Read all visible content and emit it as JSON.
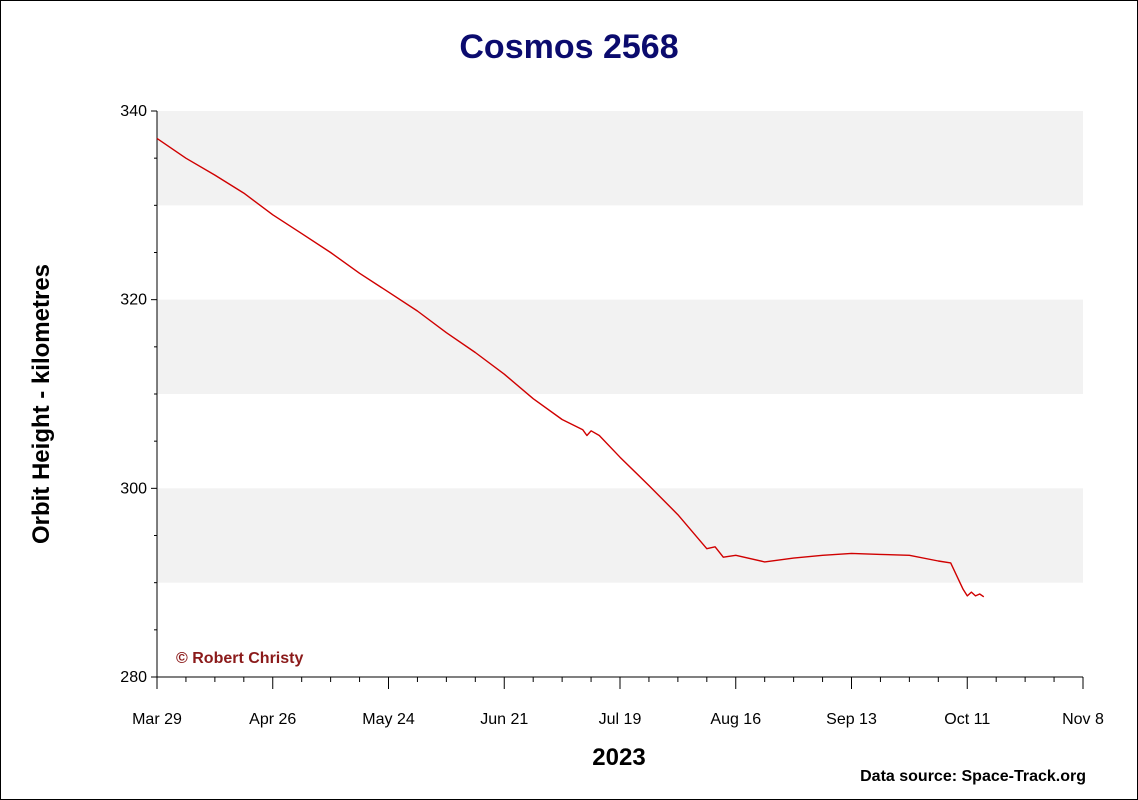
{
  "chart_data": {
    "type": "line",
    "title": "Cosmos 2568",
    "xlabel": "2023",
    "ylabel": "Orbit Height - kilometres",
    "ylim": [
      280,
      340
    ],
    "xlim": [
      "Mar 29",
      "Nov 8"
    ],
    "y_ticks": [
      "280",
      "300",
      "320",
      "340"
    ],
    "x_ticks": [
      "Mar 29",
      "Apr 26",
      "May 24",
      "Jun 21",
      "Jul 19",
      "Aug 16",
      "Sep 13",
      "Oct 11",
      "Nov 8"
    ],
    "grid": "alternating horizontal bands every 10 km",
    "series": [
      {
        "color": "#d00000",
        "points": [
          [
            "Mar 29",
            337.1
          ],
          [
            "Apr 5",
            335.0
          ],
          [
            "Apr 12",
            333.2
          ],
          [
            "Apr 19",
            331.3
          ],
          [
            "Apr 26",
            329.0
          ],
          [
            "May 3",
            327.0
          ],
          [
            "May 10",
            325.0
          ],
          [
            "May 17",
            322.8
          ],
          [
            "May 24",
            320.8
          ],
          [
            "May 31",
            318.8
          ],
          [
            "Jun 7",
            316.5
          ],
          [
            "Jun 14",
            314.4
          ],
          [
            "Jun 21",
            312.1
          ],
          [
            "Jun 28",
            309.5
          ],
          [
            "Jul 5",
            307.3
          ],
          [
            "Jul 10",
            306.2
          ],
          [
            "Jul 11",
            305.6
          ],
          [
            "Jul 12",
            306.1
          ],
          [
            "Jul 14",
            305.6
          ],
          [
            "Jul 19",
            303.3
          ],
          [
            "Jul 26",
            300.3
          ],
          [
            "Aug 2",
            297.2
          ],
          [
            "Aug 9",
            293.6
          ],
          [
            "Aug 11",
            293.8
          ],
          [
            "Aug 13",
            292.7
          ],
          [
            "Aug 16",
            292.9
          ],
          [
            "Aug 23",
            292.2
          ],
          [
            "Aug 30",
            292.6
          ],
          [
            "Sep 6",
            292.9
          ],
          [
            "Sep 13",
            293.1
          ],
          [
            "Sep 20",
            293.0
          ],
          [
            "Sep 27",
            292.9
          ],
          [
            "Oct 4",
            292.3
          ],
          [
            "Oct 7",
            292.1
          ],
          [
            "Oct 10",
            289.3
          ],
          [
            "Oct 11",
            288.6
          ],
          [
            "Oct 12",
            289.0
          ],
          [
            "Oct 13",
            288.6
          ],
          [
            "Oct 14",
            288.8
          ],
          [
            "Oct 15",
            288.5
          ]
        ]
      }
    ],
    "annotations": [
      "© Robert Christy"
    ],
    "source": "Data source: Space-Track.org"
  }
}
